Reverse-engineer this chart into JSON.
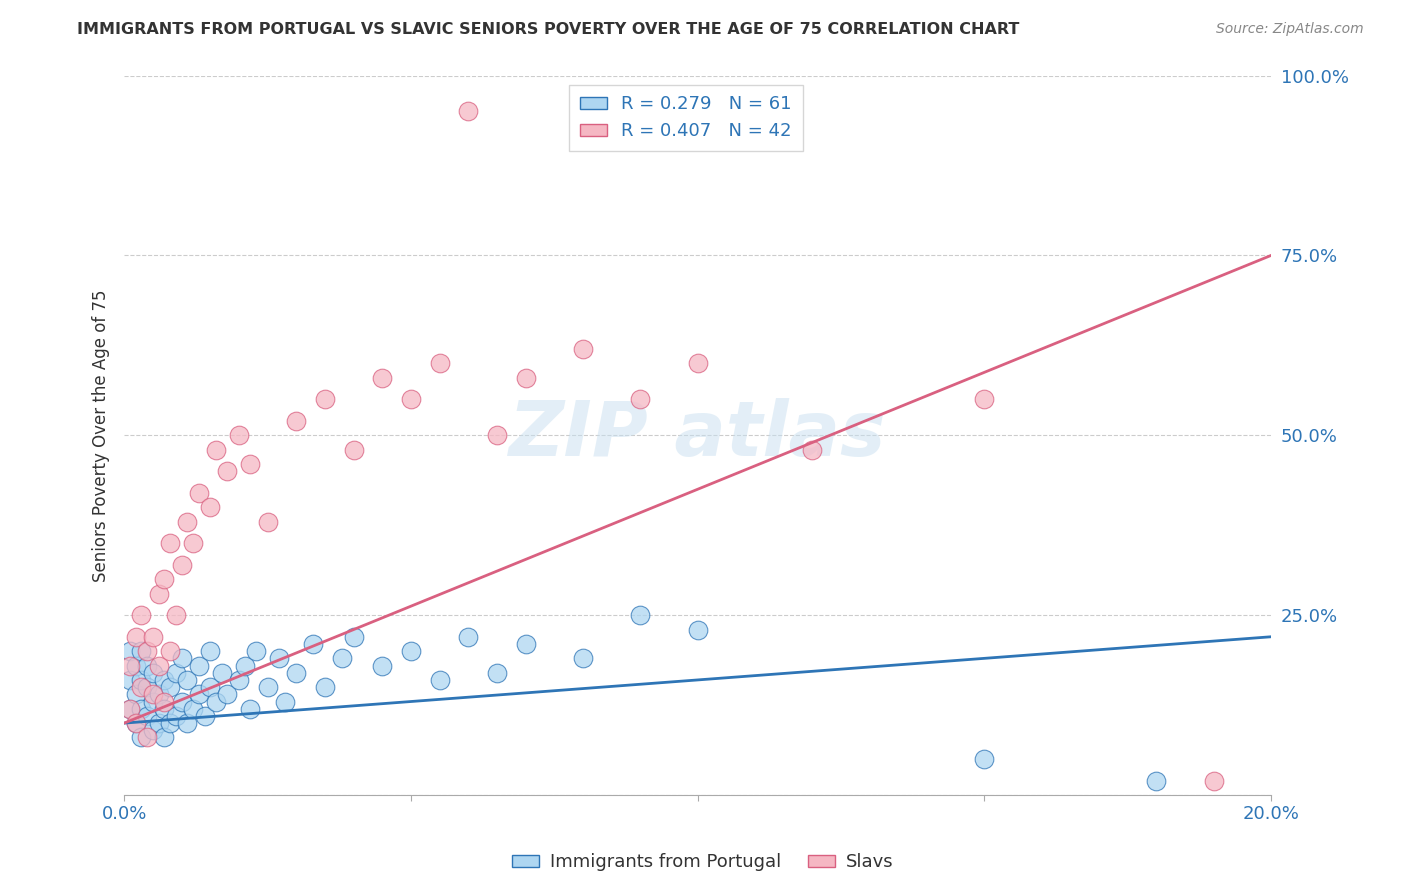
{
  "title": "IMMIGRANTS FROM PORTUGAL VS SLAVIC SENIORS POVERTY OVER THE AGE OF 75 CORRELATION CHART",
  "source": "Source: ZipAtlas.com",
  "ylabel": "Seniors Poverty Over the Age of 75",
  "legend_label_1": "Immigrants from Portugal",
  "legend_label_2": "Slavs",
  "r1": 0.279,
  "n1": 61,
  "r2": 0.407,
  "n2": 42,
  "color1": "#aed6f1",
  "color2": "#f5b7c3",
  "line_color1": "#2e75b6",
  "line_color2": "#d96080",
  "xlim": [
    0.0,
    0.2
  ],
  "ylim": [
    0.0,
    1.0
  ],
  "background_color": "#ffffff",
  "grid_color": "#cccccc",
  "blue_line_x0": 0.0,
  "blue_line_y0": 0.1,
  "blue_line_x1": 0.2,
  "blue_line_y1": 0.22,
  "pink_line_x0": 0.0,
  "pink_line_y0": 0.1,
  "pink_line_x1": 0.2,
  "pink_line_y1": 0.75,
  "portugal_x": [
    0.001,
    0.001,
    0.001,
    0.002,
    0.002,
    0.002,
    0.003,
    0.003,
    0.003,
    0.003,
    0.004,
    0.004,
    0.004,
    0.005,
    0.005,
    0.005,
    0.006,
    0.006,
    0.007,
    0.007,
    0.007,
    0.008,
    0.008,
    0.009,
    0.009,
    0.01,
    0.01,
    0.011,
    0.011,
    0.012,
    0.013,
    0.013,
    0.014,
    0.015,
    0.015,
    0.016,
    0.017,
    0.018,
    0.02,
    0.021,
    0.022,
    0.023,
    0.025,
    0.027,
    0.028,
    0.03,
    0.033,
    0.035,
    0.038,
    0.04,
    0.045,
    0.05,
    0.055,
    0.06,
    0.065,
    0.07,
    0.08,
    0.09,
    0.1,
    0.15,
    0.18
  ],
  "portugal_y": [
    0.12,
    0.16,
    0.2,
    0.1,
    0.14,
    0.18,
    0.08,
    0.12,
    0.16,
    0.2,
    0.11,
    0.15,
    0.18,
    0.09,
    0.13,
    0.17,
    0.1,
    0.14,
    0.08,
    0.12,
    0.16,
    0.1,
    0.15,
    0.11,
    0.17,
    0.13,
    0.19,
    0.1,
    0.16,
    0.12,
    0.14,
    0.18,
    0.11,
    0.15,
    0.2,
    0.13,
    0.17,
    0.14,
    0.16,
    0.18,
    0.12,
    0.2,
    0.15,
    0.19,
    0.13,
    0.17,
    0.21,
    0.15,
    0.19,
    0.22,
    0.18,
    0.2,
    0.16,
    0.22,
    0.17,
    0.21,
    0.19,
    0.25,
    0.23,
    0.05,
    0.02
  ],
  "slavs_x": [
    0.001,
    0.001,
    0.002,
    0.002,
    0.003,
    0.003,
    0.004,
    0.004,
    0.005,
    0.005,
    0.006,
    0.006,
    0.007,
    0.007,
    0.008,
    0.008,
    0.009,
    0.01,
    0.011,
    0.012,
    0.013,
    0.015,
    0.016,
    0.018,
    0.02,
    0.022,
    0.025,
    0.03,
    0.035,
    0.04,
    0.045,
    0.05,
    0.055,
    0.06,
    0.065,
    0.07,
    0.08,
    0.09,
    0.1,
    0.12,
    0.15,
    0.19
  ],
  "slavs_y": [
    0.12,
    0.18,
    0.1,
    0.22,
    0.15,
    0.25,
    0.08,
    0.2,
    0.14,
    0.22,
    0.18,
    0.28,
    0.13,
    0.3,
    0.2,
    0.35,
    0.25,
    0.32,
    0.38,
    0.35,
    0.42,
    0.4,
    0.48,
    0.45,
    0.5,
    0.46,
    0.38,
    0.52,
    0.55,
    0.48,
    0.58,
    0.55,
    0.6,
    0.95,
    0.5,
    0.58,
    0.62,
    0.55,
    0.6,
    0.48,
    0.55,
    0.02
  ]
}
